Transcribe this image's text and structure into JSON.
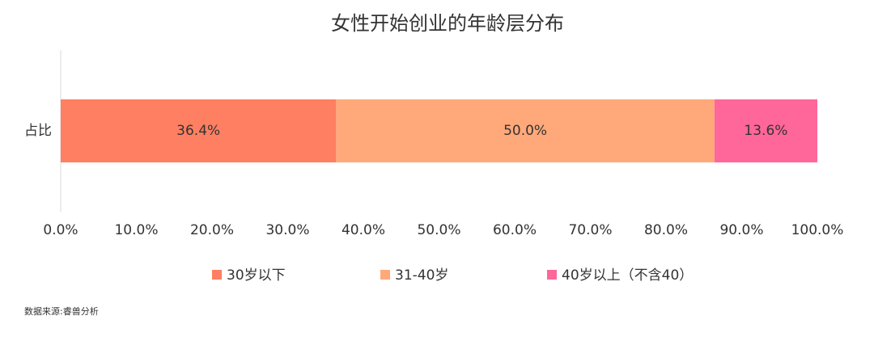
{
  "chart_data": {
    "type": "stacked-bar-horizontal",
    "title": "女性开始创业的年龄层分布",
    "categories": [
      "占比"
    ],
    "series": [
      {
        "name": "30岁以下",
        "color": "#ff7f62",
        "values": [
          36.4
        ],
        "value_labels": [
          "36.4%"
        ]
      },
      {
        "name": "31-40岁",
        "color": "#ffa97a",
        "values": [
          50.0
        ],
        "value_labels": [
          "50.0%"
        ]
      },
      {
        "name": "40岁以上（不含40）",
        "color": "#ff6699",
        "values": [
          13.6
        ],
        "value_labels": [
          "13.6%"
        ]
      }
    ],
    "xlim": [
      0,
      100
    ],
    "xticks": [
      {
        "value": 0,
        "label": "0.0%"
      },
      {
        "value": 10,
        "label": "10.0%"
      },
      {
        "value": 20,
        "label": "20.0%"
      },
      {
        "value": 30,
        "label": "30.0%"
      },
      {
        "value": 40,
        "label": "40.0%"
      },
      {
        "value": 50,
        "label": "50.0%"
      },
      {
        "value": 60,
        "label": "60.0%"
      },
      {
        "value": 70,
        "label": "70.0%"
      },
      {
        "value": 80,
        "label": "80.0%"
      },
      {
        "value": 90,
        "label": "90.0%"
      },
      {
        "value": 100,
        "label": "100.0%"
      }
    ],
    "legend": "bottom",
    "source": "数据来源:睿兽分析"
  }
}
